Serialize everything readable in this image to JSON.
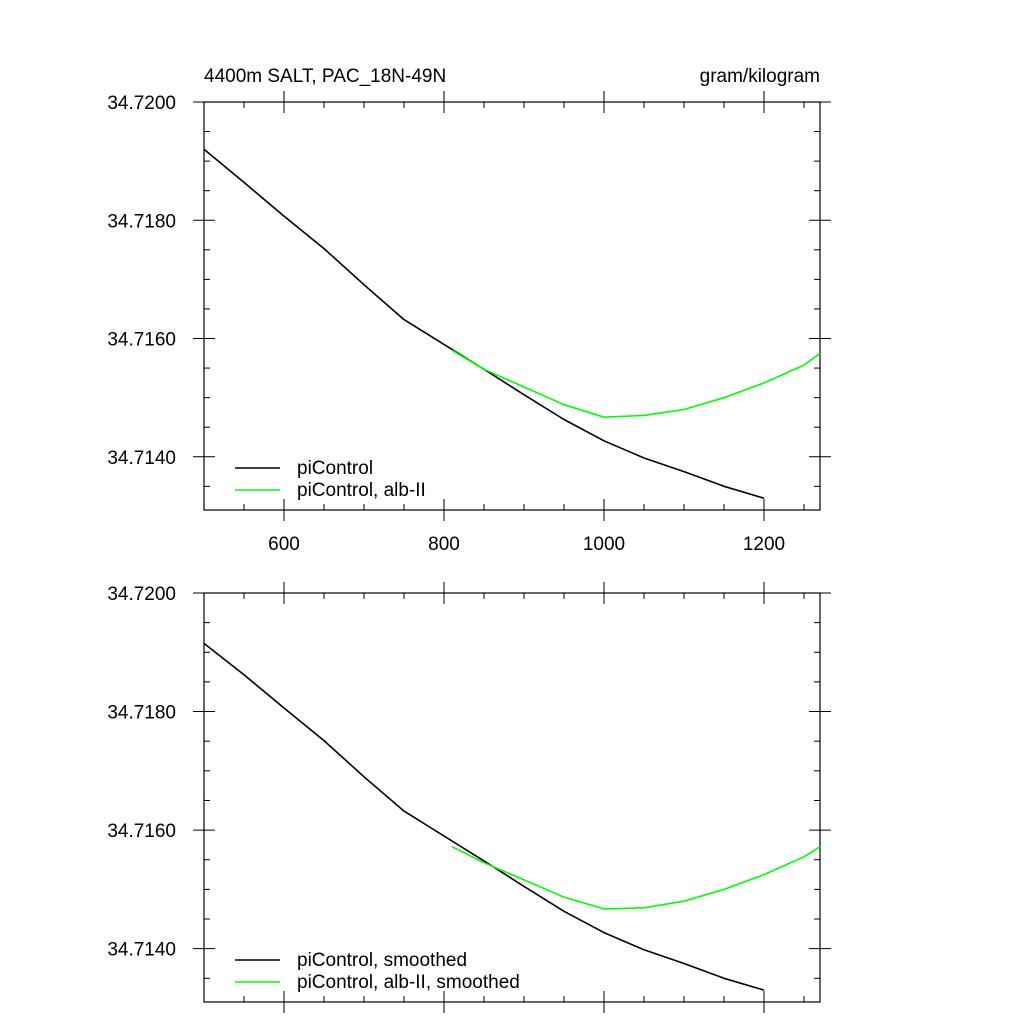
{
  "header": {
    "left_title": "4400m SALT, PAC_18N-49N",
    "right_title": "gram/kilogram"
  },
  "chart_data": [
    {
      "type": "line",
      "panel": "top",
      "xlim": [
        500,
        1270
      ],
      "ylim": [
        34.7131,
        34.72
      ],
      "x_ticks": [
        600,
        800,
        1000,
        1200
      ],
      "x_tick_labels": [
        "600",
        "800",
        "1000",
        "1200"
      ],
      "y_ticks": [
        34.714,
        34.716,
        34.718,
        34.72
      ],
      "y_tick_labels": [
        "34.7140",
        "34.7160",
        "34.7180",
        "34.7200"
      ],
      "legend_position": "bottom-left",
      "series": [
        {
          "name": "piControl",
          "color": "#000000",
          "x": [
            500,
            550,
            600,
            650,
            700,
            750,
            800,
            850,
            900,
            950,
            1000,
            1050,
            1100,
            1150,
            1200
          ],
          "y": [
            34.7192,
            34.71864,
            34.71807,
            34.71752,
            34.71691,
            34.71632,
            34.7159,
            34.71548,
            34.71505,
            34.71463,
            34.71427,
            34.71398,
            34.71375,
            34.7135,
            34.7133
          ]
        },
        {
          "name": "piControl, alb-II",
          "color": "#00ff00",
          "x": [
            810,
            850,
            900,
            950,
            1000,
            1050,
            1100,
            1150,
            1200,
            1250,
            1270
          ],
          "y": [
            34.7158,
            34.71548,
            34.71518,
            34.71488,
            34.71467,
            34.7147,
            34.7148,
            34.715,
            34.71525,
            34.71555,
            34.71575
          ]
        }
      ]
    },
    {
      "type": "line",
      "panel": "bottom",
      "xlim": [
        500,
        1270
      ],
      "ylim": [
        34.7131,
        34.72
      ],
      "x_ticks": [
        600,
        800,
        1000,
        1200
      ],
      "y_ticks": [
        34.714,
        34.716,
        34.718,
        34.72
      ],
      "y_tick_labels": [
        "34.7140",
        "34.7160",
        "34.7180",
        "34.7200"
      ],
      "legend_position": "bottom-left",
      "series": [
        {
          "name": "piControl, smoothed",
          "color": "#000000",
          "x": [
            500,
            550,
            600,
            650,
            700,
            750,
            800,
            850,
            900,
            950,
            1000,
            1050,
            1100,
            1150,
            1200
          ],
          "y": [
            34.71915,
            34.71862,
            34.71806,
            34.71751,
            34.7169,
            34.71632,
            34.7159,
            34.71548,
            34.71505,
            34.71463,
            34.71427,
            34.71398,
            34.71375,
            34.7135,
            34.7133
          ]
        },
        {
          "name": "piControl, alb-II, smoothed",
          "color": "#00ff00",
          "x": [
            810,
            850,
            900,
            950,
            1000,
            1050,
            1100,
            1150,
            1200,
            1250,
            1270
          ],
          "y": [
            34.71572,
            34.71545,
            34.71516,
            34.71487,
            34.71467,
            34.71469,
            34.7148,
            34.715,
            34.71525,
            34.71555,
            34.71572
          ]
        }
      ]
    }
  ]
}
